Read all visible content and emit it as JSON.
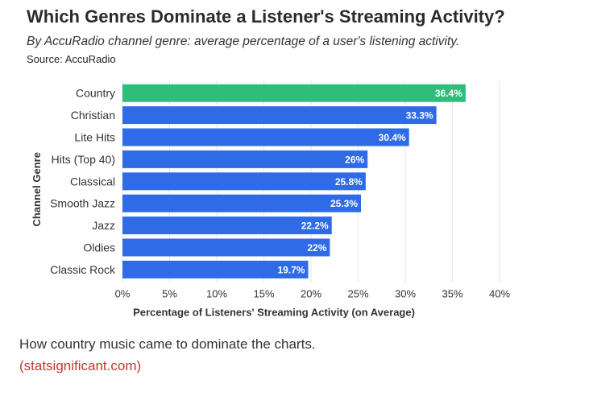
{
  "header": {
    "title": "Which Genres Dominate a Listener's Streaming Activity?",
    "subtitle": "By AccuRadio channel genre: average percentage of a user's listening activity.",
    "source": "Source: AccuRadio"
  },
  "colors": {
    "highlight": "#2ebd7a",
    "bar": "#2f6be6",
    "grid": "#e6e6e6",
    "link": "#c0392b"
  },
  "chart_data": {
    "type": "bar",
    "orientation": "horizontal",
    "categories": [
      "Country",
      "Christian",
      "Lite Hits",
      "Hits (Top 40)",
      "Classical",
      "Smooth Jazz",
      "Jazz",
      "Oldies",
      "Classic Rock"
    ],
    "values": [
      36.4,
      33.3,
      30.4,
      26,
      25.8,
      25.3,
      22.2,
      22,
      19.7
    ],
    "data_labels": [
      "36.4%",
      "33.3%",
      "30.4%",
      "26%",
      "25.8%",
      "25.3%",
      "22.2%",
      "22%",
      "19.7%"
    ],
    "xlabel": "Percentage of Listeners' Streaming Activity (on Average)",
    "ylabel": "Channel Genre",
    "xlim": [
      0,
      40
    ],
    "xticks": [
      0,
      5,
      10,
      15,
      20,
      25,
      30,
      35,
      40
    ],
    "xtick_labels": [
      "0%",
      "5%",
      "10%",
      "15%",
      "20%",
      "25%",
      "30%",
      "35%",
      "40%"
    ],
    "highlight_category": "Country",
    "grid": true
  },
  "footer": {
    "caption": "How country music came to dominate the charts.",
    "link_text": "(statsignificant.com)"
  }
}
